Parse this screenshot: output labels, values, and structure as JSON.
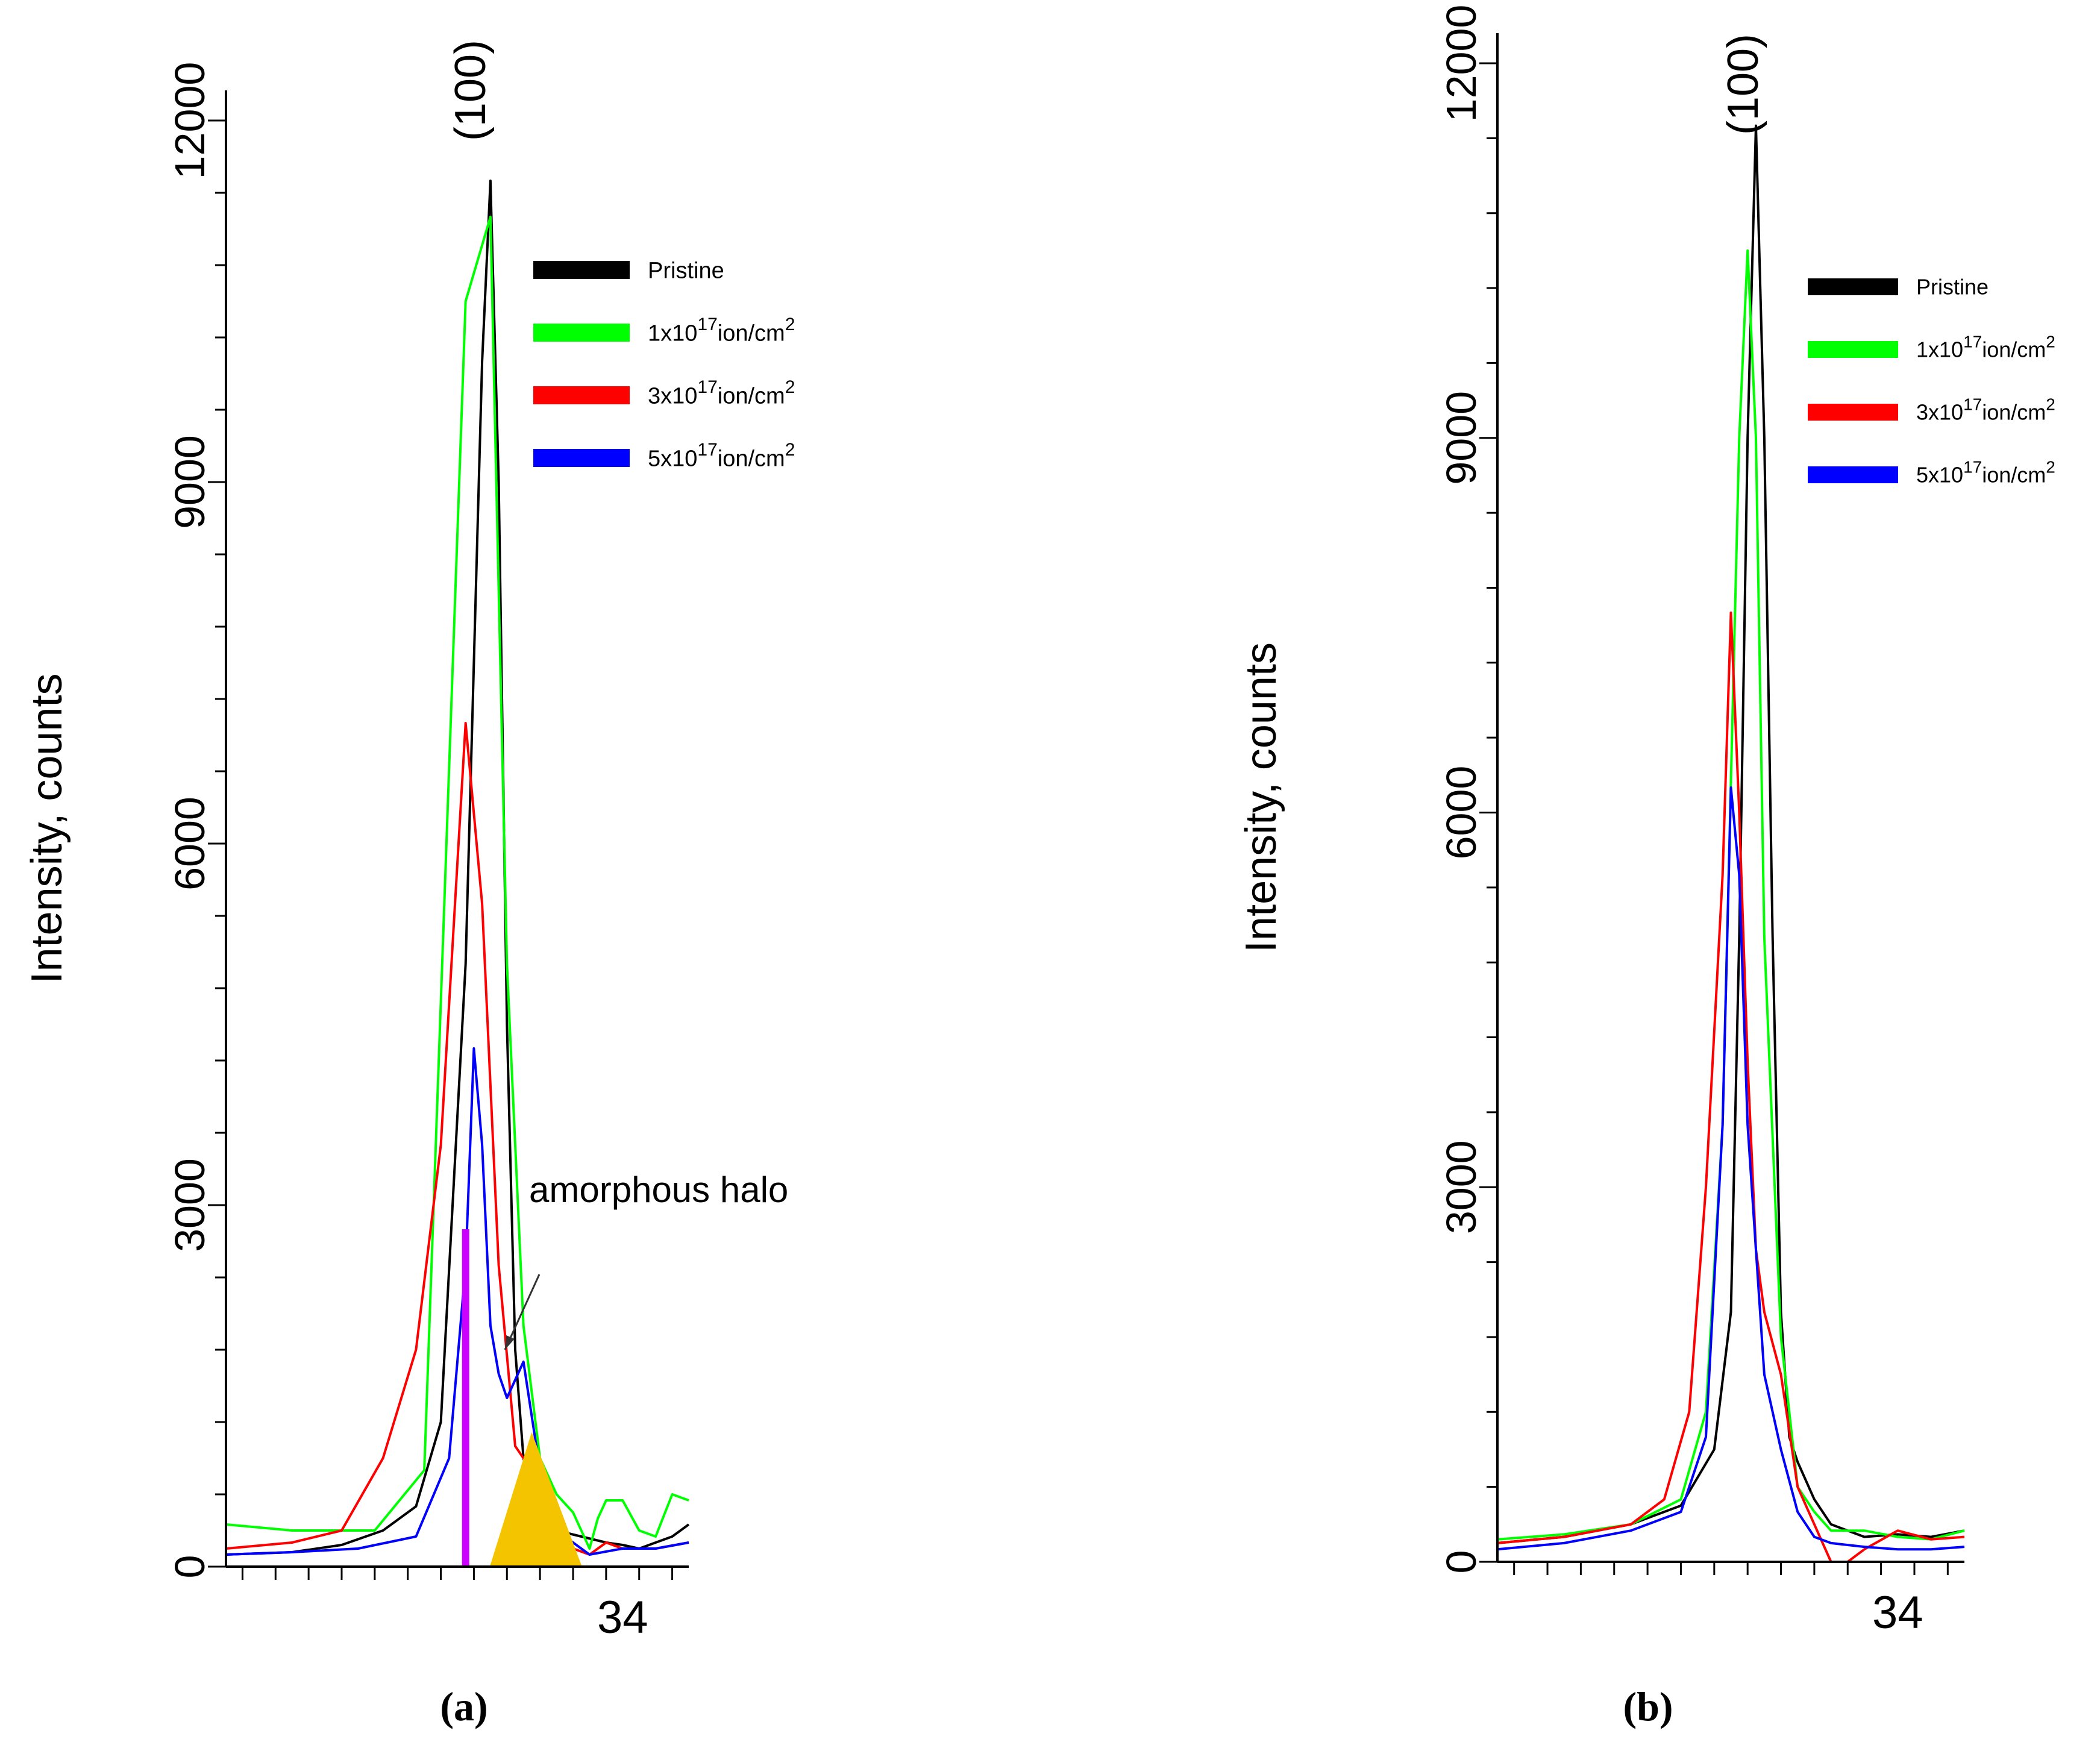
{
  "figure": {
    "panels_caption": [
      "(a)",
      "(b)"
    ]
  },
  "legend": {
    "items": [
      {
        "name": "Pristine",
        "color": "#000000"
      },
      {
        "name": "1x10^17ion/cm^2",
        "color": "#00ff00"
      },
      {
        "name": "3x10^17ion/cm^2",
        "color": "#ff0000"
      },
      {
        "name": "5x10^17ion/cm^2",
        "color": "#0000ff"
      }
    ]
  },
  "chart_data": [
    {
      "panel": "(a)",
      "type": "line",
      "title": "",
      "xlabel": "",
      "ylabel": "Intensity, counts",
      "peak_label": "(100)",
      "annotation": "amorphous halo",
      "xlim": [
        31.6,
        34.4
      ],
      "ylim": [
        0,
        12000
      ],
      "xticks": [
        34
      ],
      "xtick_labels": [
        "34"
      ],
      "yticks": [
        0,
        3000,
        6000,
        9000,
        12000
      ],
      "ytick_labels": [
        "0",
        "3000",
        "6000",
        "9000",
        "12000"
      ],
      "grid": false,
      "legend_position": "top-right",
      "series": [
        {
          "name": "Pristine",
          "color": "#000000",
          "x": [
            31.6,
            32.0,
            32.3,
            32.55,
            32.75,
            32.9,
            33.05,
            33.15,
            33.2,
            33.25,
            33.3,
            33.35,
            33.4,
            33.5,
            33.6,
            33.75,
            33.9,
            34.0,
            34.1,
            34.2,
            34.3,
            34.4
          ],
          "y": [
            100,
            120,
            180,
            300,
            500,
            1200,
            5000,
            10000,
            11500,
            9000,
            4500,
            1800,
            900,
            400,
            300,
            250,
            200,
            180,
            150,
            200,
            250,
            350
          ]
        },
        {
          "name": "1x10^17ion/cm^2",
          "color": "#00ff00",
          "x": [
            31.6,
            32.0,
            32.5,
            32.8,
            33.05,
            33.2,
            33.3,
            33.4,
            33.5,
            33.6,
            33.7,
            33.8,
            33.85,
            33.9,
            34.0,
            34.1,
            34.2,
            34.3,
            34.4
          ],
          "y": [
            350,
            300,
            300,
            800,
            10500,
            11200,
            5000,
            2000,
            900,
            600,
            450,
            150,
            400,
            550,
            550,
            300,
            250,
            600,
            550
          ]
        },
        {
          "name": "3x10^17ion/cm^2",
          "color": "#ff0000",
          "x": [
            31.6,
            32.0,
            32.3,
            32.55,
            32.75,
            32.9,
            33.05,
            33.15,
            33.25,
            33.35,
            33.45,
            33.55,
            33.6,
            33.7,
            33.8,
            33.9,
            34.0,
            34.2,
            34.4
          ],
          "y": [
            150,
            200,
            300,
            900,
            1800,
            3500,
            7000,
            5500,
            2500,
            1000,
            800,
            300,
            200,
            150,
            100,
            200,
            150,
            150,
            200
          ]
        },
        {
          "name": "5x10^17ion/cm^2",
          "color": "#0000ff",
          "x": [
            31.6,
            32.0,
            32.4,
            32.75,
            32.95,
            33.05,
            33.1,
            33.15,
            33.2,
            33.25,
            33.3,
            33.4,
            33.5,
            33.6,
            33.7,
            33.8,
            34.0,
            34.2,
            34.4
          ],
          "y": [
            100,
            120,
            150,
            250,
            900,
            2500,
            4300,
            3500,
            2000,
            1600,
            1400,
            1700,
            800,
            300,
            200,
            100,
            150,
            150,
            200
          ]
        }
      ],
      "markers": [
        {
          "type": "bar",
          "color": "#cc00ff",
          "x": 33.05,
          "y": 2800
        },
        {
          "type": "filled-peak",
          "color": "#f5c400",
          "x": [
            33.2,
            33.45,
            33.75
          ],
          "y": [
            0,
            1100,
            0
          ]
        }
      ]
    },
    {
      "panel": "(b)",
      "type": "line",
      "title": "",
      "xlabel": "",
      "ylabel": "Intensity, counts",
      "peak_label": "(100)",
      "xlim": [
        31.6,
        34.4
      ],
      "ylim": [
        0,
        12000
      ],
      "xticks": [
        34
      ],
      "xtick_labels": [
        "34"
      ],
      "yticks": [
        0,
        3000,
        6000,
        9000,
        12000
      ],
      "ytick_labels": [
        "0",
        "3000",
        "6000",
        "9000",
        "12000"
      ],
      "grid": false,
      "legend_position": "top-right",
      "series": [
        {
          "name": "Pristine",
          "color": "#000000",
          "x": [
            31.6,
            32.0,
            32.4,
            32.7,
            32.9,
            33.0,
            33.05,
            33.1,
            33.15,
            33.2,
            33.25,
            33.3,
            33.35,
            33.4,
            33.5,
            33.6,
            33.8,
            34.0,
            34.2,
            34.4
          ],
          "y": [
            150,
            200,
            300,
            450,
            900,
            2000,
            5000,
            9000,
            11500,
            9000,
            5000,
            2000,
            1000,
            800,
            500,
            300,
            200,
            220,
            200,
            250
          ]
        },
        {
          "name": "1x10^17ion/cm^2",
          "color": "#00ff00",
          "x": [
            31.6,
            32.0,
            32.4,
            32.7,
            32.85,
            32.95,
            33.05,
            33.1,
            33.15,
            33.2,
            33.3,
            33.4,
            33.5,
            33.6,
            33.8,
            34.0,
            34.2,
            34.4
          ],
          "y": [
            180,
            220,
            300,
            500,
            1200,
            3500,
            9000,
            10500,
            9000,
            5000,
            1800,
            600,
            400,
            250,
            250,
            200,
            180,
            250
          ]
        },
        {
          "name": "3x10^17ion/cm^2",
          "color": "#ff0000",
          "x": [
            31.6,
            32.0,
            32.4,
            32.6,
            32.75,
            32.85,
            32.95,
            33.0,
            33.05,
            33.1,
            33.15,
            33.2,
            33.3,
            33.4,
            33.5,
            33.6,
            33.7,
            33.8,
            34.0,
            34.2,
            34.4
          ],
          "y": [
            150,
            200,
            300,
            500,
            1200,
            3000,
            5500,
            7600,
            6000,
            4000,
            2500,
            2000,
            1500,
            600,
            300,
            0,
            0,
            100,
            250,
            180,
            200
          ]
        },
        {
          "name": "5x10^17ion/cm^2",
          "color": "#0000ff",
          "x": [
            31.6,
            32.0,
            32.4,
            32.7,
            32.85,
            32.95,
            33.0,
            33.05,
            33.1,
            33.15,
            33.2,
            33.3,
            33.4,
            33.5,
            33.6,
            33.8,
            34.0,
            34.2,
            34.4
          ],
          "y": [
            100,
            150,
            250,
            400,
            1000,
            3500,
            6200,
            5500,
            3500,
            2500,
            1500,
            900,
            400,
            200,
            150,
            120,
            100,
            100,
            120
          ]
        }
      ]
    }
  ]
}
